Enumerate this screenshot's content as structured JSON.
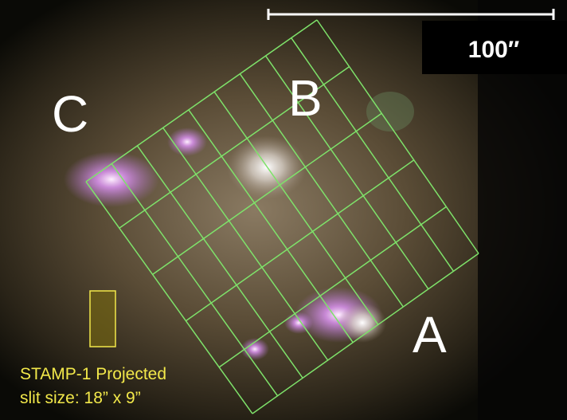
{
  "labels": {
    "a": "A",
    "b": "B",
    "c": "C"
  },
  "scale_bar": {
    "label": "100″"
  },
  "caption": {
    "line1": "STAMP-1 Projected",
    "line2": "slit size: 18” x 9”"
  }
}
